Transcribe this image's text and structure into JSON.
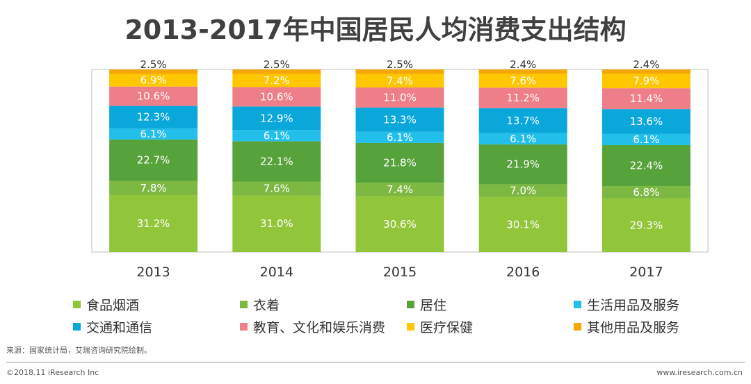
{
  "title": "2013-2017年中国居民人均消费支出结构",
  "chart_data": {
    "type": "bar",
    "stacked": true,
    "categories": [
      "2013",
      "2014",
      "2015",
      "2016",
      "2017"
    ],
    "series": [
      {
        "name": "食品烟酒",
        "color": "#92C63A",
        "values": [
          31.2,
          31.0,
          30.6,
          30.1,
          29.3
        ],
        "labels": [
          "31.2%",
          "31.0%",
          "30.6%",
          "30.1%",
          "29.3%"
        ]
      },
      {
        "name": "衣着",
        "color": "#7DB842",
        "values": [
          7.8,
          7.6,
          7.4,
          7.0,
          6.8
        ],
        "labels": [
          "7.8%",
          "7.6%",
          "7.4%",
          "7.0%",
          "6.8%"
        ]
      },
      {
        "name": "居住",
        "color": "#56A33C",
        "values": [
          22.7,
          22.1,
          21.8,
          21.9,
          22.4
        ],
        "labels": [
          "22.7%",
          "22.1%",
          "21.8%",
          "21.9%",
          "22.4%"
        ]
      },
      {
        "name": "生活用品及服务",
        "color": "#21BFE9",
        "values": [
          6.1,
          6.1,
          6.1,
          6.1,
          6.1
        ],
        "labels": [
          "6.1%",
          "6.1%",
          "6.1%",
          "6.1%",
          "6.1%"
        ]
      },
      {
        "name": "交通和通信",
        "color": "#0AA7DB",
        "values": [
          12.3,
          12.9,
          13.3,
          13.7,
          13.6
        ],
        "labels": [
          "12.3%",
          "12.9%",
          "13.3%",
          "13.7%",
          "13.6%"
        ]
      },
      {
        "name": "教育、文化和娱乐消费",
        "color": "#EE7F89",
        "values": [
          10.6,
          10.6,
          11.0,
          11.2,
          11.4
        ],
        "labels": [
          "10.6%",
          "10.6%",
          "11.0%",
          "11.2%",
          "11.4%"
        ]
      },
      {
        "name": "医疗保健",
        "color": "#FFC700",
        "values": [
          6.9,
          7.2,
          7.4,
          7.6,
          7.9
        ],
        "labels": [
          "6.9%",
          "7.2%",
          "7.4%",
          "7.6%",
          "7.9%"
        ]
      },
      {
        "name": "其他用品及服务",
        "color": "#F5A800",
        "values": [
          2.5,
          2.5,
          2.5,
          2.4,
          2.4
        ],
        "labels": [
          "2.5%",
          "2.5%",
          "2.5%",
          "2.4%",
          "2.4%"
        ]
      }
    ],
    "ylim": [
      0,
      100
    ],
    "legend_position": "bottom"
  },
  "legend_items": [
    {
      "label": "食品烟酒",
      "color": "#92C63A"
    },
    {
      "label": "衣着",
      "color": "#7DB842"
    },
    {
      "label": "居住",
      "color": "#56A33C"
    },
    {
      "label": "生活用品及服务",
      "color": "#21BFE9"
    },
    {
      "label": "交通和通信",
      "color": "#0AA7DB"
    },
    {
      "label": "教育、文化和娱乐消费",
      "color": "#EE7F89"
    },
    {
      "label": "医疗保健",
      "color": "#FFC700"
    },
    {
      "label": "其他用品及服务",
      "color": "#F5A800"
    }
  ],
  "footer": {
    "source": "来源：国家统计局，艾瑞咨询研究院绘制。",
    "copyright": "©2018.11 iResearch Inc",
    "website": "www.iresearch.com.cn"
  }
}
